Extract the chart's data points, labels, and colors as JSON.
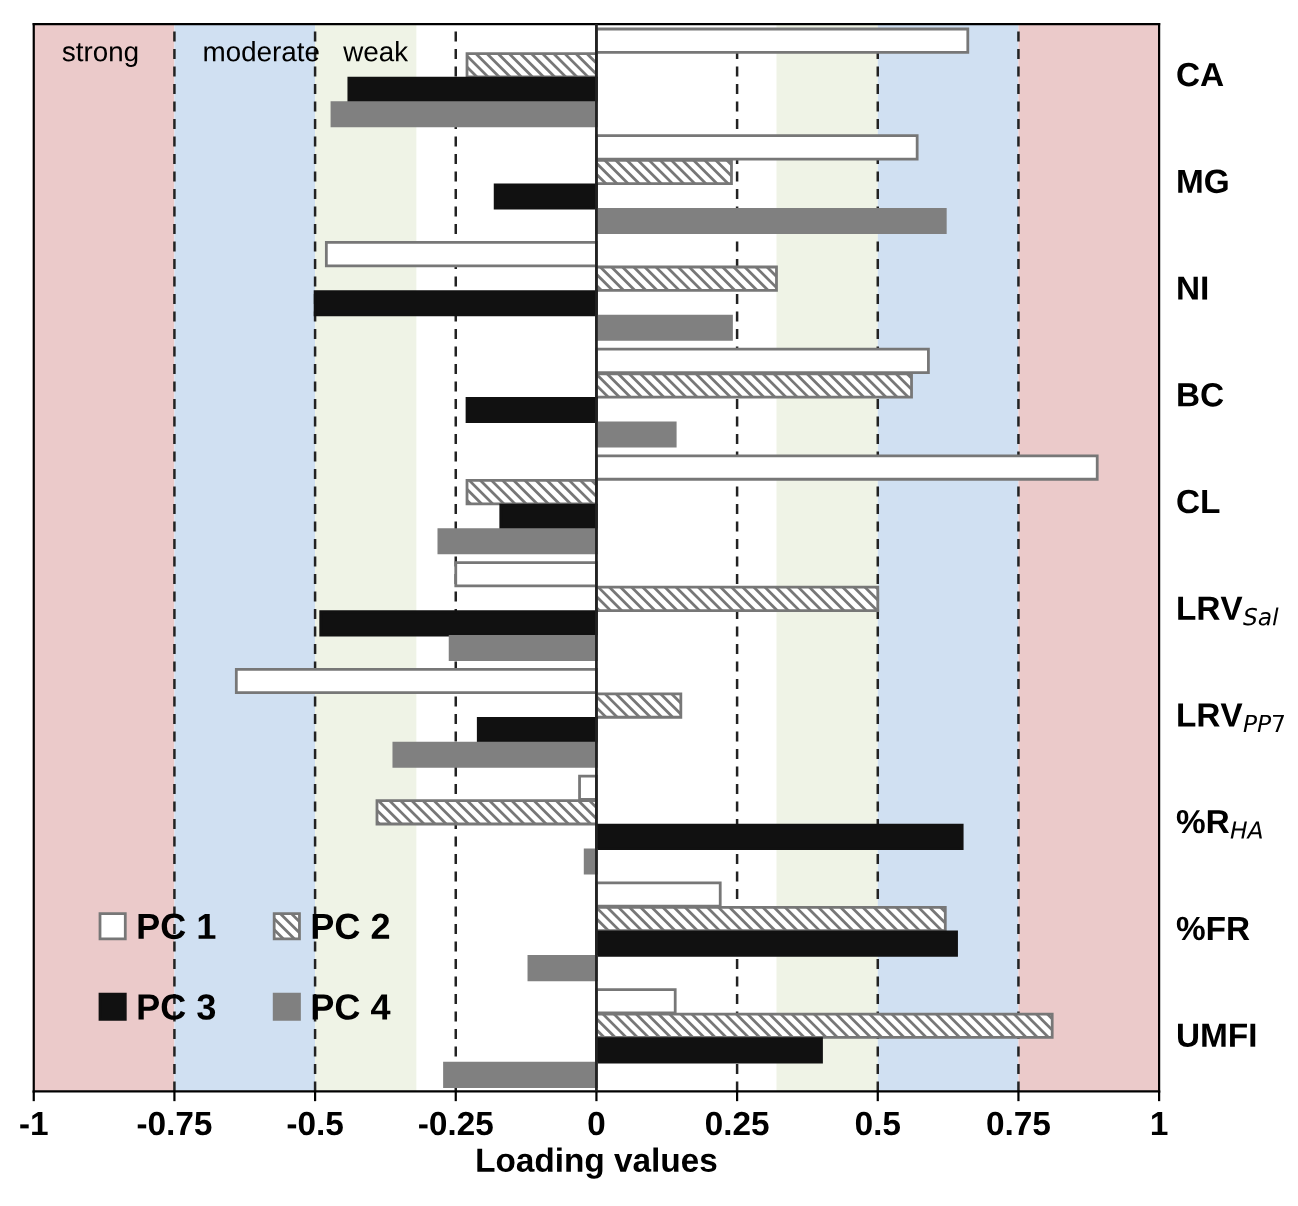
{
  "chart_data": {
    "type": "bar",
    "orientation": "horizontal",
    "xlabel": "Loading values",
    "categories": [
      "CA",
      "MG",
      "NI",
      "BC",
      "CL",
      "LRV$_{Sal}$",
      "LRV$_{PP7}$",
      "%R$_{HA}$",
      "%FR",
      "UMFI"
    ],
    "series": [
      {
        "name": "PC 1",
        "color": "#ffffff",
        "values": [
          0.66,
          0.57,
          -0.48,
          0.59,
          0.89,
          -0.25,
          -0.64,
          -0.03,
          0.22,
          0.14
        ]
      },
      {
        "name": "PC 2",
        "color": "#777777",
        "values": [
          -0.23,
          0.24,
          0.32,
          0.56,
          -0.23,
          0.5,
          0.15,
          -0.39,
          0.62,
          0.81
        ]
      },
      {
        "name": "PC 3",
        "color": "#111111",
        "values": [
          -0.44,
          -0.18,
          -0.5,
          -0.23,
          -0.17,
          -0.49,
          -0.21,
          0.65,
          0.64,
          0.4
        ]
      },
      {
        "name": "PC 4",
        "color": "#808080",
        "values": [
          -0.47,
          0.62,
          0.24,
          0.14,
          -0.28,
          -0.26,
          -0.36,
          -0.02,
          -0.12,
          -0.27
        ]
      }
    ],
    "xlim": [
      -1,
      1
    ],
    "xticks": [
      -1,
      -0.75,
      -0.5,
      -0.25,
      0,
      0.25,
      0.5,
      0.75,
      1
    ],
    "bands": [
      {
        "axis": "x",
        "from": -1,
        "to": -0.75,
        "label": "strong",
        "color": "#ebcaca"
      },
      {
        "axis": "x",
        "from": -0.75,
        "to": -0.5,
        "label": "moderate",
        "color": "#d0e0f2"
      },
      {
        "axis": "x",
        "from": -0.5,
        "to": -0.32,
        "label": "weak",
        "color": "#eff3e6"
      },
      {
        "axis": "x",
        "from": 0.32,
        "to": 0.5,
        "label": null,
        "color": "#eff3e6"
      },
      {
        "axis": "x",
        "from": 0.5,
        "to": 0.75,
        "label": null,
        "color": "#d0e0f2"
      },
      {
        "axis": "x",
        "from": 0.75,
        "to": 1,
        "label": null,
        "color": "#ebcaca"
      }
    ],
    "ref_lines": [
      {
        "axis": "x",
        "value": -0.75,
        "line_style": "dashed"
      },
      {
        "axis": "x",
        "value": -0.5,
        "line_style": "dashed"
      },
      {
        "axis": "x",
        "value": -0.25,
        "line_style": "dashed"
      },
      {
        "axis": "x",
        "value": 0.25,
        "line_style": "dashed"
      },
      {
        "axis": "x",
        "value": 0.5,
        "line_style": "dashed"
      },
      {
        "axis": "x",
        "value": 0.75,
        "line_style": "dashed"
      }
    ],
    "legend": "bottom left",
    "grid": false
  }
}
